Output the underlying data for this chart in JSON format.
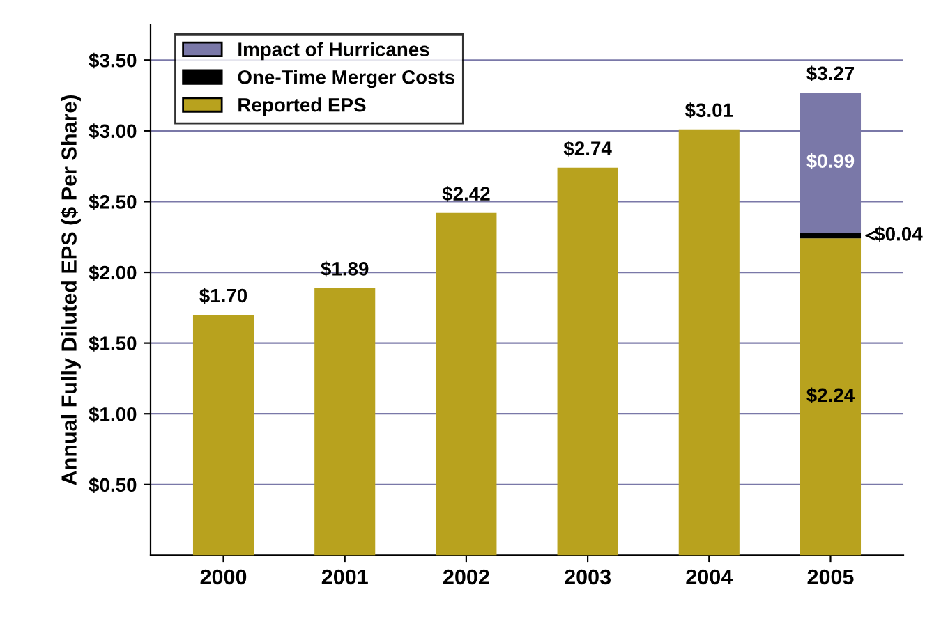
{
  "chart_data": {
    "type": "bar",
    "stacked": true,
    "ylabel": "Annual Fully Diluted EPS ($ Per Share)",
    "categories": [
      "2000",
      "2001",
      "2002",
      "2003",
      "2004",
      "2005"
    ],
    "series": [
      {
        "name": "Reported EPS",
        "color": "#b8a21e",
        "values": [
          1.7,
          1.89,
          2.42,
          2.74,
          3.01,
          2.24
        ],
        "value_labels": [
          null,
          null,
          null,
          null,
          null,
          "$2.24"
        ]
      },
      {
        "name": "One-Time Merger Costs",
        "color": "#000000",
        "values": [
          null,
          null,
          null,
          null,
          null,
          0.04
        ],
        "value_labels": [
          null,
          null,
          null,
          null,
          null,
          "$0.04"
        ]
      },
      {
        "name": "Impact of Hurricanes",
        "color": "#7a78a8",
        "values": [
          null,
          null,
          null,
          null,
          null,
          0.99
        ],
        "value_labels": [
          null,
          null,
          null,
          null,
          null,
          "$0.99"
        ]
      }
    ],
    "totals": [
      "$1.70",
      "$1.89",
      "$2.42",
      "$2.74",
      "$3.01",
      "$3.27"
    ],
    "ylim": [
      0,
      3.75
    ],
    "yticks": [
      {
        "value": 0.5,
        "label": "$0.50"
      },
      {
        "value": 1.0,
        "label": "$1.00"
      },
      {
        "value": 1.5,
        "label": "$1.50"
      },
      {
        "value": 2.0,
        "label": "$2.00"
      },
      {
        "value": 2.5,
        "label": "$2.50"
      },
      {
        "value": 3.0,
        "label": "$3.00"
      },
      {
        "value": 3.5,
        "label": "$3.50"
      }
    ],
    "grid": "y",
    "legend": "top left"
  }
}
